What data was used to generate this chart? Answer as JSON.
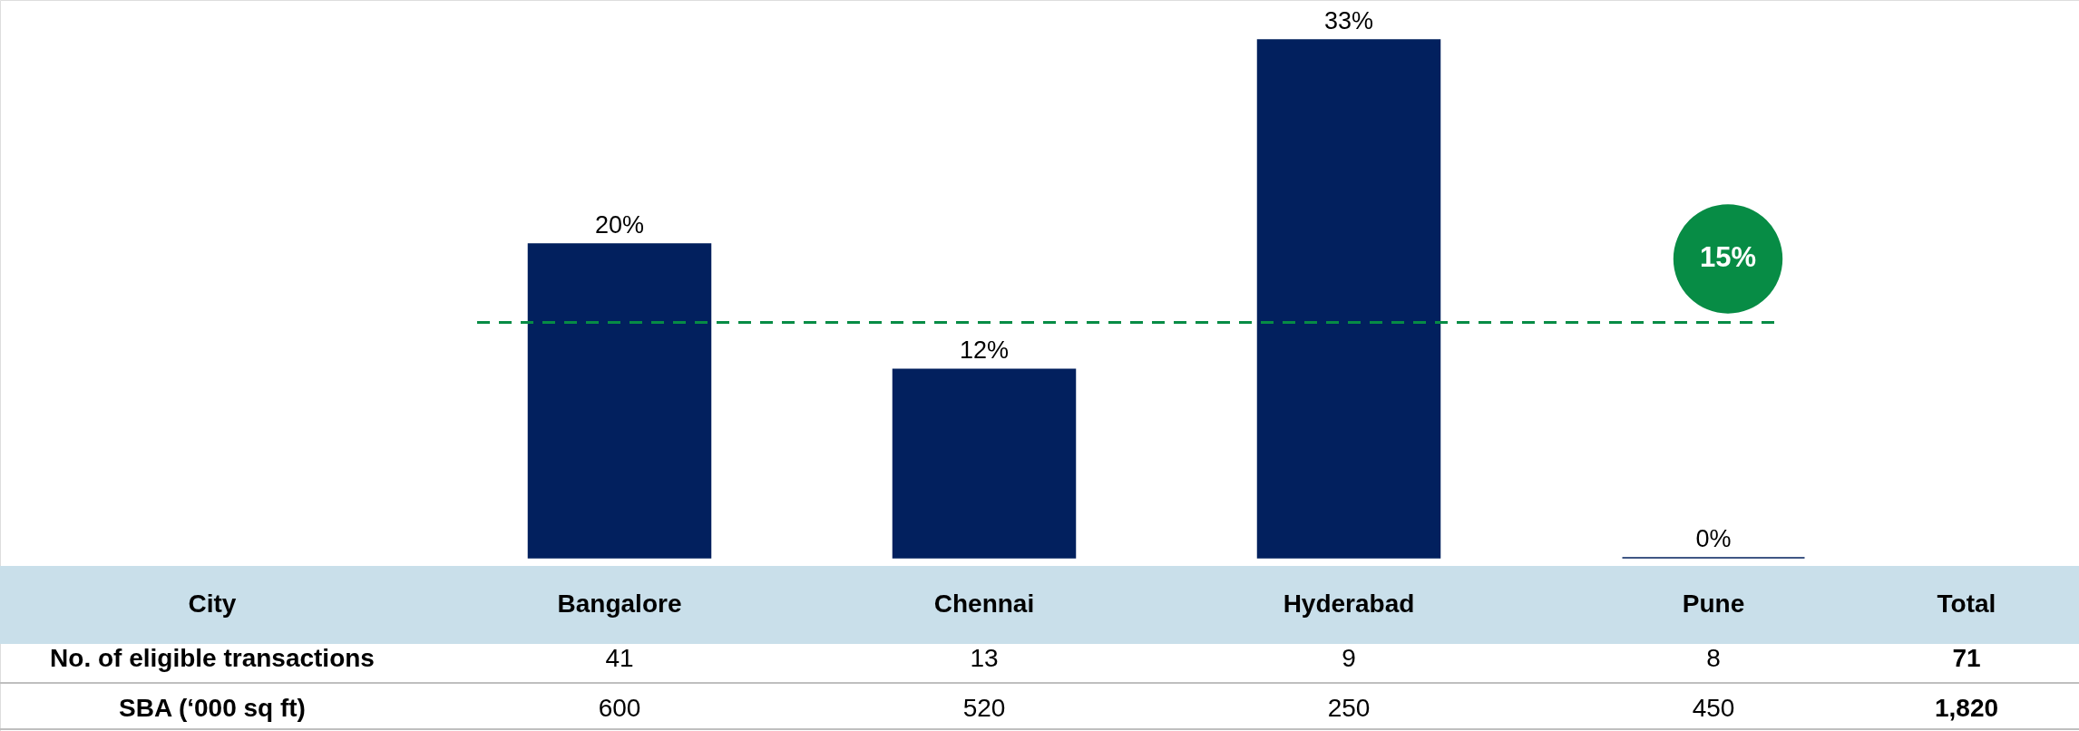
{
  "chart_data": {
    "type": "bar",
    "categories": [
      "Bangalore",
      "Chennai",
      "Hyderabad",
      "Pune"
    ],
    "values": [
      20,
      12,
      33,
      0
    ],
    "color": "#02205e",
    "value_labels": [
      "20%",
      "12%",
      "33%",
      "0%"
    ],
    "data_labels": true,
    "ref_lines": [
      {
        "axis": "y",
        "value": 15,
        "label": "15%",
        "color": "#078c45",
        "line_style": "dashed"
      }
    ],
    "annotations": [
      "City",
      "Total",
      "No. of eligible transactions",
      "41",
      "13",
      "9",
      "8",
      "71",
      "SBA (‘000 sq ft)",
      "600",
      "520",
      "250",
      "450",
      "1,820"
    ]
  }
}
